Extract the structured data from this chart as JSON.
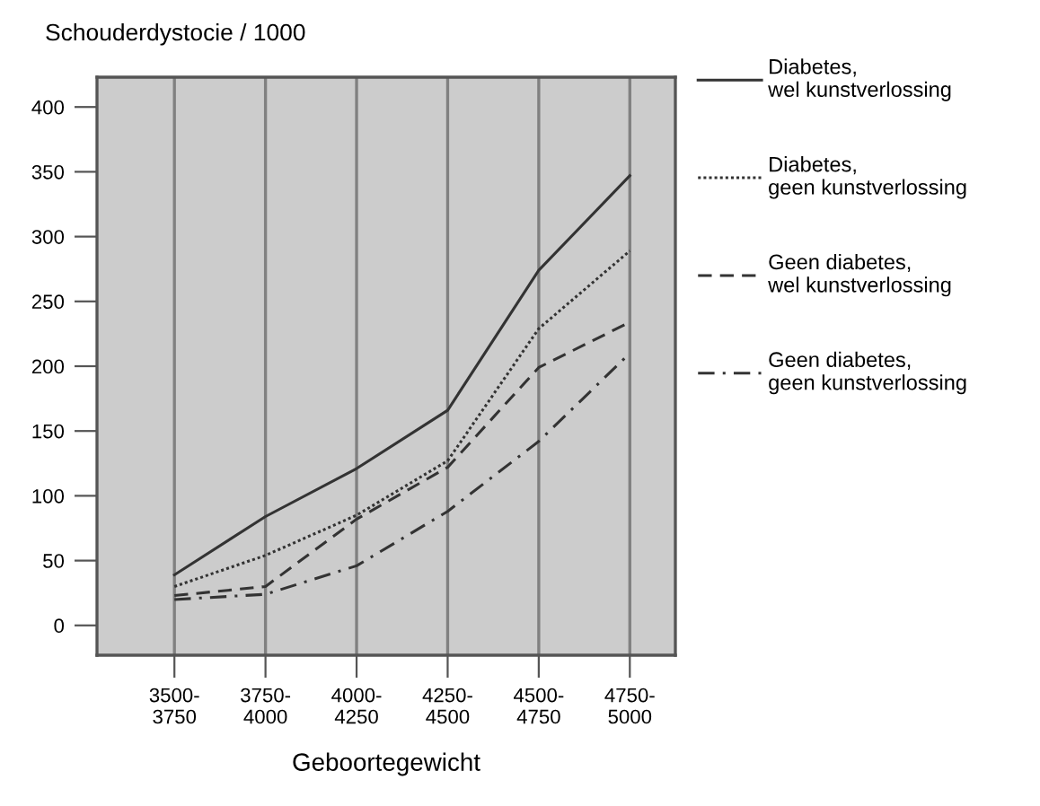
{
  "chart_data": {
    "type": "line",
    "ylabel": "Schouderdystocie / 1000",
    "xlabel": "Geboortegewicht",
    "categories": [
      "3500-\n3750",
      "3750-\n4000",
      "4000-\n4250",
      "4250-\n4500",
      "4500-\n4750",
      "4750-\n5000"
    ],
    "ylim": [
      -23,
      423
    ],
    "yticks": [
      0,
      50,
      100,
      150,
      200,
      250,
      300,
      350,
      400
    ],
    "grid": "x",
    "legend": "right",
    "marker": "none",
    "series": [
      {
        "name": "Diabetes,\nwel kunstverlossing",
        "color": "#333333",
        "line_style": "solid",
        "values": [
          39,
          84,
          121,
          166,
          274,
          347
        ]
      },
      {
        "name": "Diabetes,\ngeen kunstverlossing",
        "color": "#333333",
        "line_style": "dotted",
        "values": [
          30,
          54,
          85,
          127,
          229,
          289
        ]
      },
      {
        "name": "Geen diabetes,\nwel kunstverlossing",
        "color": "#333333",
        "line_style": "dashed",
        "values": [
          23,
          30,
          82,
          122,
          199,
          234
        ]
      },
      {
        "name": "Geen diabetes,\ngeen kunstverlossing",
        "color": "#333333",
        "line_style": "dashdot",
        "values": [
          20,
          24,
          46,
          88,
          142,
          210
        ]
      }
    ]
  }
}
